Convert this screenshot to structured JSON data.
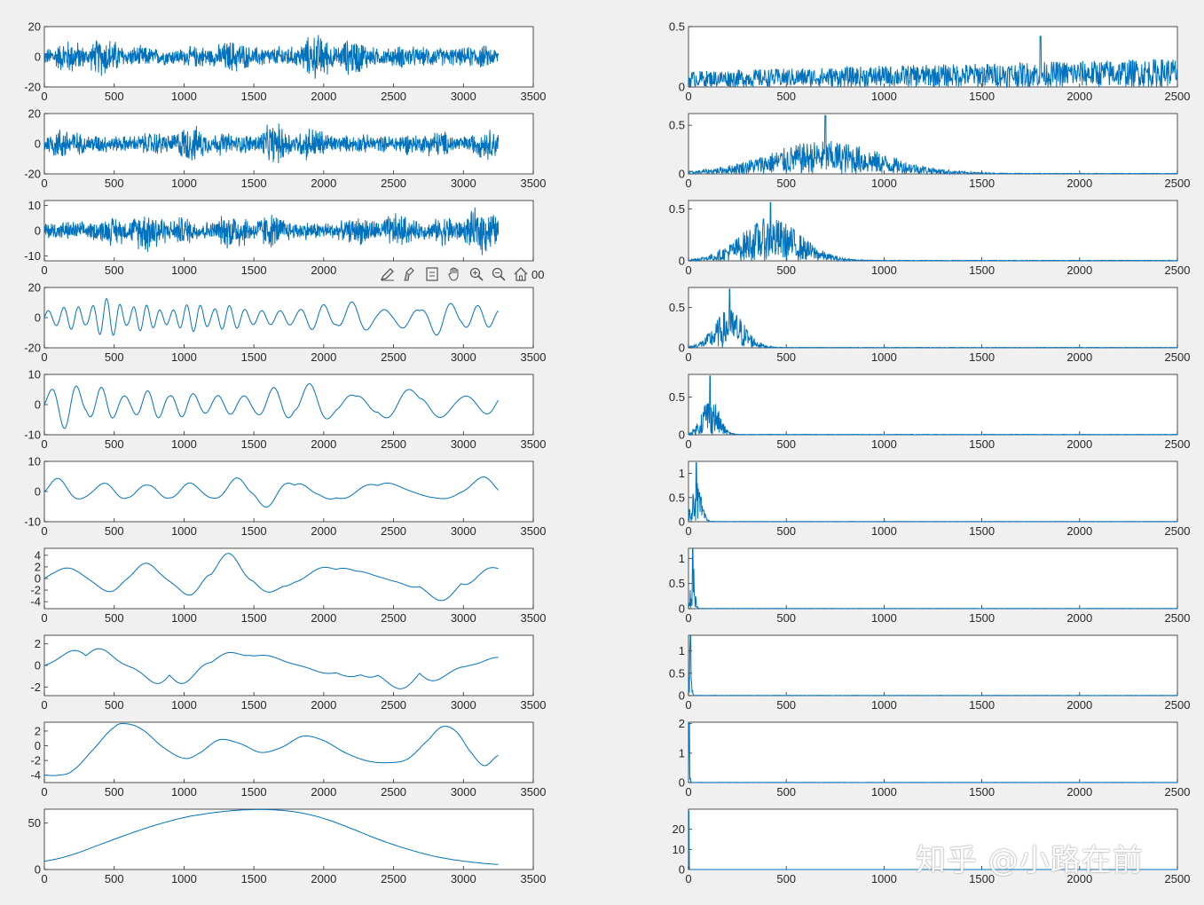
{
  "chart_data": [
    {
      "type": "line",
      "title": "",
      "xlabel": "",
      "ylabel": "",
      "xlim": [
        0,
        3500
      ],
      "ylim": [
        -20,
        20
      ],
      "xticks": [
        "0",
        "500",
        "1000",
        "1500",
        "2000",
        "2500",
        "3000",
        "3500"
      ],
      "yticks": [
        "-20",
        "0",
        "20"
      ],
      "signal": "noise",
      "amplitude": 18,
      "freq": 0.35
    },
    {
      "type": "line",
      "title": "",
      "xlabel": "",
      "ylabel": "",
      "xlim": [
        0,
        3500
      ],
      "ylim": [
        -20,
        20
      ],
      "xticks": [
        "0",
        "500",
        "1000",
        "1500",
        "2000",
        "2500",
        "3000",
        "3500"
      ],
      "yticks": [
        "-20",
        "0",
        "20"
      ],
      "signal": "noise",
      "amplitude": 17,
      "freq": 0.22
    },
    {
      "type": "line",
      "title": "",
      "xlabel": "",
      "ylabel": "",
      "xlim": [
        0,
        3500
      ],
      "ylim": [
        -12,
        12
      ],
      "xticks": [
        "0",
        "500",
        "1000",
        "1500",
        "2000",
        "2500",
        "3000",
        "3500"
      ],
      "yticks": [
        "-10",
        "0",
        "10"
      ],
      "signal": "noise",
      "amplitude": 11,
      "freq": 0.12
    },
    {
      "type": "line",
      "title": "",
      "xlabel": "",
      "ylabel": "",
      "xlim": [
        0,
        3500
      ],
      "ylim": [
        -20,
        20
      ],
      "xticks": [
        "0",
        "500",
        "1000",
        "1500",
        "2000",
        "2500",
        "3000",
        "3500"
      ],
      "yticks": [
        "-20",
        "0",
        "20"
      ],
      "signal": "osc",
      "amplitude": 13,
      "freq": 0.055
    },
    {
      "type": "line",
      "title": "",
      "xlabel": "",
      "ylabel": "",
      "xlim": [
        0,
        3500
      ],
      "ylim": [
        -10,
        10
      ],
      "xticks": [
        "0",
        "500",
        "1000",
        "1500",
        "2000",
        "2500",
        "3000",
        "3500"
      ],
      "yticks": [
        "-10",
        "0",
        "10"
      ],
      "signal": "osc",
      "amplitude": 8,
      "freq": 0.032
    },
    {
      "type": "line",
      "title": "",
      "xlabel": "",
      "ylabel": "",
      "xlim": [
        0,
        3500
      ],
      "ylim": [
        -10,
        10
      ],
      "xticks": [
        "0",
        "500",
        "1000",
        "1500",
        "2000",
        "2500",
        "3000",
        "3500"
      ],
      "yticks": [
        "-10",
        "0",
        "10"
      ],
      "signal": "osc",
      "amplitude": 6,
      "freq": 0.017
    },
    {
      "type": "line",
      "title": "",
      "xlabel": "",
      "ylabel": "",
      "xlim": [
        0,
        3500
      ],
      "ylim": [
        -5.2,
        5.2
      ],
      "xticks": [
        "0",
        "500",
        "1000",
        "1500",
        "2000",
        "2500",
        "3000",
        "3500"
      ],
      "yticks": [
        "-4",
        "-2",
        "0",
        "2",
        "4"
      ],
      "signal": "osc",
      "amplitude": 4.5,
      "freq": 0.0095
    },
    {
      "type": "line",
      "title": "",
      "xlabel": "",
      "ylabel": "",
      "xlim": [
        0,
        3500
      ],
      "ylim": [
        -2.8,
        2.8
      ],
      "xticks": [
        "0",
        "500",
        "1000",
        "1500",
        "2000",
        "2500",
        "3000",
        "3500"
      ],
      "yticks": [
        "-2",
        "0",
        "2"
      ],
      "signal": "osc",
      "amplitude": 2.6,
      "freq": 0.0048
    },
    {
      "type": "line",
      "title": "",
      "xlabel": "",
      "ylabel": "",
      "xlim": [
        0,
        3500
      ],
      "ylim": [
        -5,
        3.2
      ],
      "xticks": [
        "0",
        "500",
        "1000",
        "1500",
        "2000",
        "2500",
        "3000",
        "3500"
      ],
      "yticks": [
        "-4",
        "-2",
        "0",
        "2"
      ],
      "x": [
        0,
        100,
        200,
        350,
        500,
        580,
        700,
        850,
        1000,
        1100,
        1250,
        1400,
        1550,
        1700,
        1850,
        2000,
        2150,
        2300,
        2450,
        2600,
        2750,
        2850,
        2950,
        3050,
        3150,
        3250
      ],
      "y": [
        -4,
        -4,
        -3.4,
        -0.5,
        2.5,
        3,
        2.2,
        -0.2,
        -1.7,
        -1.1,
        0.8,
        0.3,
        -0.9,
        -0.2,
        1.3,
        0.7,
        -0.9,
        -2,
        -2.3,
        -1.8,
        0.8,
        2.6,
        1.9,
        -0.8,
        -2.7,
        -1.3
      ]
    },
    {
      "type": "line",
      "title": "",
      "xlabel": "",
      "ylabel": "",
      "xlim": [
        0,
        3500
      ],
      "ylim": [
        0,
        65
      ],
      "xticks": [
        "0",
        "500",
        "1000",
        "1500",
        "2000",
        "2500",
        "3000",
        "3500"
      ],
      "yticks": [
        "0",
        "50"
      ],
      "x": [
        0,
        200,
        400,
        600,
        800,
        1000,
        1200,
        1400,
        1600,
        1800,
        2000,
        2200,
        2400,
        2600,
        2800,
        3000,
        3250
      ],
      "y": [
        9,
        16,
        27,
        38,
        48,
        56,
        61,
        64,
        64.5,
        62,
        55,
        44,
        32,
        22,
        14,
        9,
        5.5
      ]
    },
    {
      "type": "line",
      "title": "",
      "xlabel": "",
      "ylabel": "",
      "xlim": [
        0,
        2500
      ],
      "ylim": [
        0,
        0.5
      ],
      "xticks": [
        "0",
        "500",
        "1000",
        "1500",
        "2000",
        "2500"
      ],
      "yticks": [
        "0",
        "0.5"
      ],
      "signal": "spec",
      "peak": 1800,
      "width": 2500,
      "height": 0.2,
      "spike": 0.42
    },
    {
      "type": "line",
      "title": "",
      "xlabel": "",
      "ylabel": "",
      "xlim": [
        0,
        2500
      ],
      "ylim": [
        0,
        0.62
      ],
      "xticks": [
        "0",
        "500",
        "1000",
        "1500",
        "2000",
        "2500"
      ],
      "yticks": [
        "0",
        "0.5"
      ],
      "signal": "spec",
      "peak": 700,
      "width": 420,
      "height": 0.28,
      "spike": 0.6
    },
    {
      "type": "line",
      "title": "",
      "xlabel": "",
      "ylabel": "",
      "xlim": [
        0,
        2500
      ],
      "ylim": [
        0,
        0.58
      ],
      "xticks": [
        "0",
        "500",
        "1000",
        "1500",
        "2000",
        "2500"
      ],
      "yticks": [
        "0",
        "0.5"
      ],
      "signal": "spec",
      "peak": 420,
      "width": 220,
      "height": 0.34,
      "spike": 0.56
    },
    {
      "type": "line",
      "title": "",
      "xlabel": "",
      "ylabel": "",
      "xlim": [
        0,
        2500
      ],
      "ylim": [
        0,
        0.75
      ],
      "xticks": [
        "0",
        "500",
        "1000",
        "1500",
        "2000",
        "2500"
      ],
      "yticks": [
        "0",
        "0.5"
      ],
      "signal": "spec",
      "peak": 210,
      "width": 110,
      "height": 0.4,
      "spike": 0.73
    },
    {
      "type": "line",
      "title": "",
      "xlabel": "",
      "ylabel": "",
      "xlim": [
        0,
        2500
      ],
      "ylim": [
        0,
        0.8
      ],
      "xticks": [
        "0",
        "500",
        "1000",
        "1500",
        "2000",
        "2500"
      ],
      "yticks": [
        "0",
        "0.5"
      ],
      "signal": "spec",
      "peak": 110,
      "width": 60,
      "height": 0.45,
      "spike": 0.78
    },
    {
      "type": "line",
      "title": "",
      "xlabel": "",
      "ylabel": "",
      "xlim": [
        0,
        2500
      ],
      "ylim": [
        0,
        1.25
      ],
      "xticks": [
        "0",
        "500",
        "1000",
        "1500",
        "2000",
        "2500"
      ],
      "yticks": [
        "0",
        "0.5",
        "1"
      ],
      "signal": "spec",
      "peak": 40,
      "width": 35,
      "height": 0.7,
      "spike": 1.22
    },
    {
      "type": "line",
      "title": "",
      "xlabel": "",
      "ylabel": "",
      "xlim": [
        0,
        2500
      ],
      "ylim": [
        0,
        1.2
      ],
      "xticks": [
        "0",
        "500",
        "1000",
        "1500",
        "2000",
        "2500"
      ],
      "yticks": [
        "0",
        "0.5",
        "1"
      ],
      "signal": "spec",
      "peak": 22,
      "width": 14,
      "height": 0.8,
      "spike": 1.18
    },
    {
      "type": "line",
      "title": "",
      "xlabel": "",
      "ylabel": "",
      "xlim": [
        0,
        2500
      ],
      "ylim": [
        0,
        1.35
      ],
      "xticks": [
        "0",
        "500",
        "1000",
        "1500",
        "2000",
        "2500"
      ],
      "yticks": [
        "0",
        "0.5",
        "1"
      ],
      "signal": "spec",
      "peak": 10,
      "width": 8,
      "height": 1,
      "spike": 1.33
    },
    {
      "type": "line",
      "title": "",
      "xlabel": "",
      "ylabel": "",
      "xlim": [
        0,
        2500
      ],
      "ylim": [
        0,
        2.05
      ],
      "xticks": [
        "0",
        "500",
        "1000",
        "1500",
        "2000",
        "2500"
      ],
      "yticks": [
        "0",
        "1",
        "2"
      ],
      "signal": "spec",
      "peak": 4,
      "width": 5,
      "height": 1.4,
      "spike": 2.05
    },
    {
      "type": "line",
      "title": "",
      "xlabel": "",
      "ylabel": "",
      "xlim": [
        0,
        2500
      ],
      "ylim": [
        0,
        30
      ],
      "xticks": [
        "0",
        "500",
        "1000",
        "1500",
        "2000",
        "2500"
      ],
      "yticks": [
        "0",
        "10",
        "20"
      ],
      "signal": "spec",
      "peak": 1,
      "width": 2,
      "height": 28,
      "spike": 29
    }
  ],
  "toolbar": {
    "icons": [
      "edit-icon",
      "brush-icon",
      "legend-icon",
      "pan-icon",
      "zoom-in-icon",
      "zoom-out-icon",
      "home-icon"
    ],
    "overlap_tick": "00"
  },
  "watermark": "知乎 @小路在前"
}
